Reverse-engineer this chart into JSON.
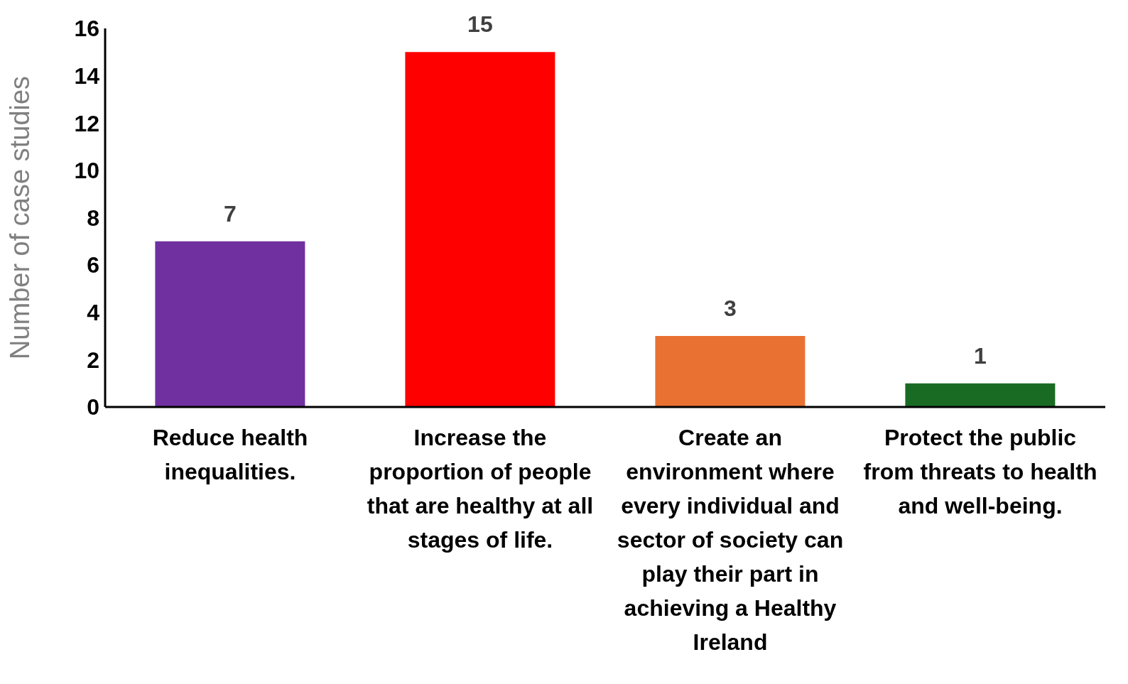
{
  "chart_data": {
    "type": "bar",
    "ylabel": "Number of case studies",
    "categories": [
      "Reduce health inequalities.",
      "Increase the proportion of people that are healthy at all stages of life.",
      "Create an environment where every individual and sector of society can play their part in achieving a Healthy Ireland",
      "Protect the public from threats to health and well-being."
    ],
    "values": [
      7,
      15,
      3,
      1
    ],
    "colors": [
      "#7030a0",
      "#ff0000",
      "#e97132",
      "#196b24"
    ],
    "ylim": [
      0,
      16
    ],
    "yticks": [
      0,
      2,
      4,
      6,
      8,
      10,
      12,
      14,
      16
    ],
    "grid": false,
    "data_labels": true
  }
}
